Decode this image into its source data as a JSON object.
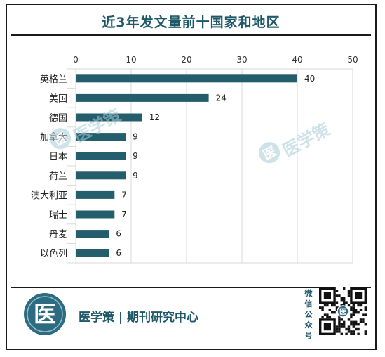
{
  "title": "近3年发文量前十国家和地区",
  "chart_data": {
    "type": "bar",
    "orientation": "horizontal",
    "categories": [
      "英格兰",
      "美国",
      "德国",
      "加拿大",
      "日本",
      "荷兰",
      "澳大利亚",
      "瑞士",
      "丹麦",
      "以色列"
    ],
    "values": [
      40,
      24,
      12,
      9,
      9,
      9,
      7,
      7,
      6,
      6
    ],
    "xlim": [
      0,
      50
    ],
    "xticks": [
      "0",
      "10",
      "20",
      "30",
      "40",
      "50"
    ],
    "grid": true,
    "bar_color": "#245e6c",
    "data_labels": true
  },
  "watermark": {
    "text": "医学策",
    "logo_glyph": "医"
  },
  "footer": {
    "logo_glyph": "医",
    "brand_text": "医学策 | 期刊研究中心",
    "follow_chars": [
      "微",
      "信",
      "公",
      "众",
      "号"
    ],
    "qr_center_glyph": "医",
    "accent_color": "#1f5868"
  }
}
